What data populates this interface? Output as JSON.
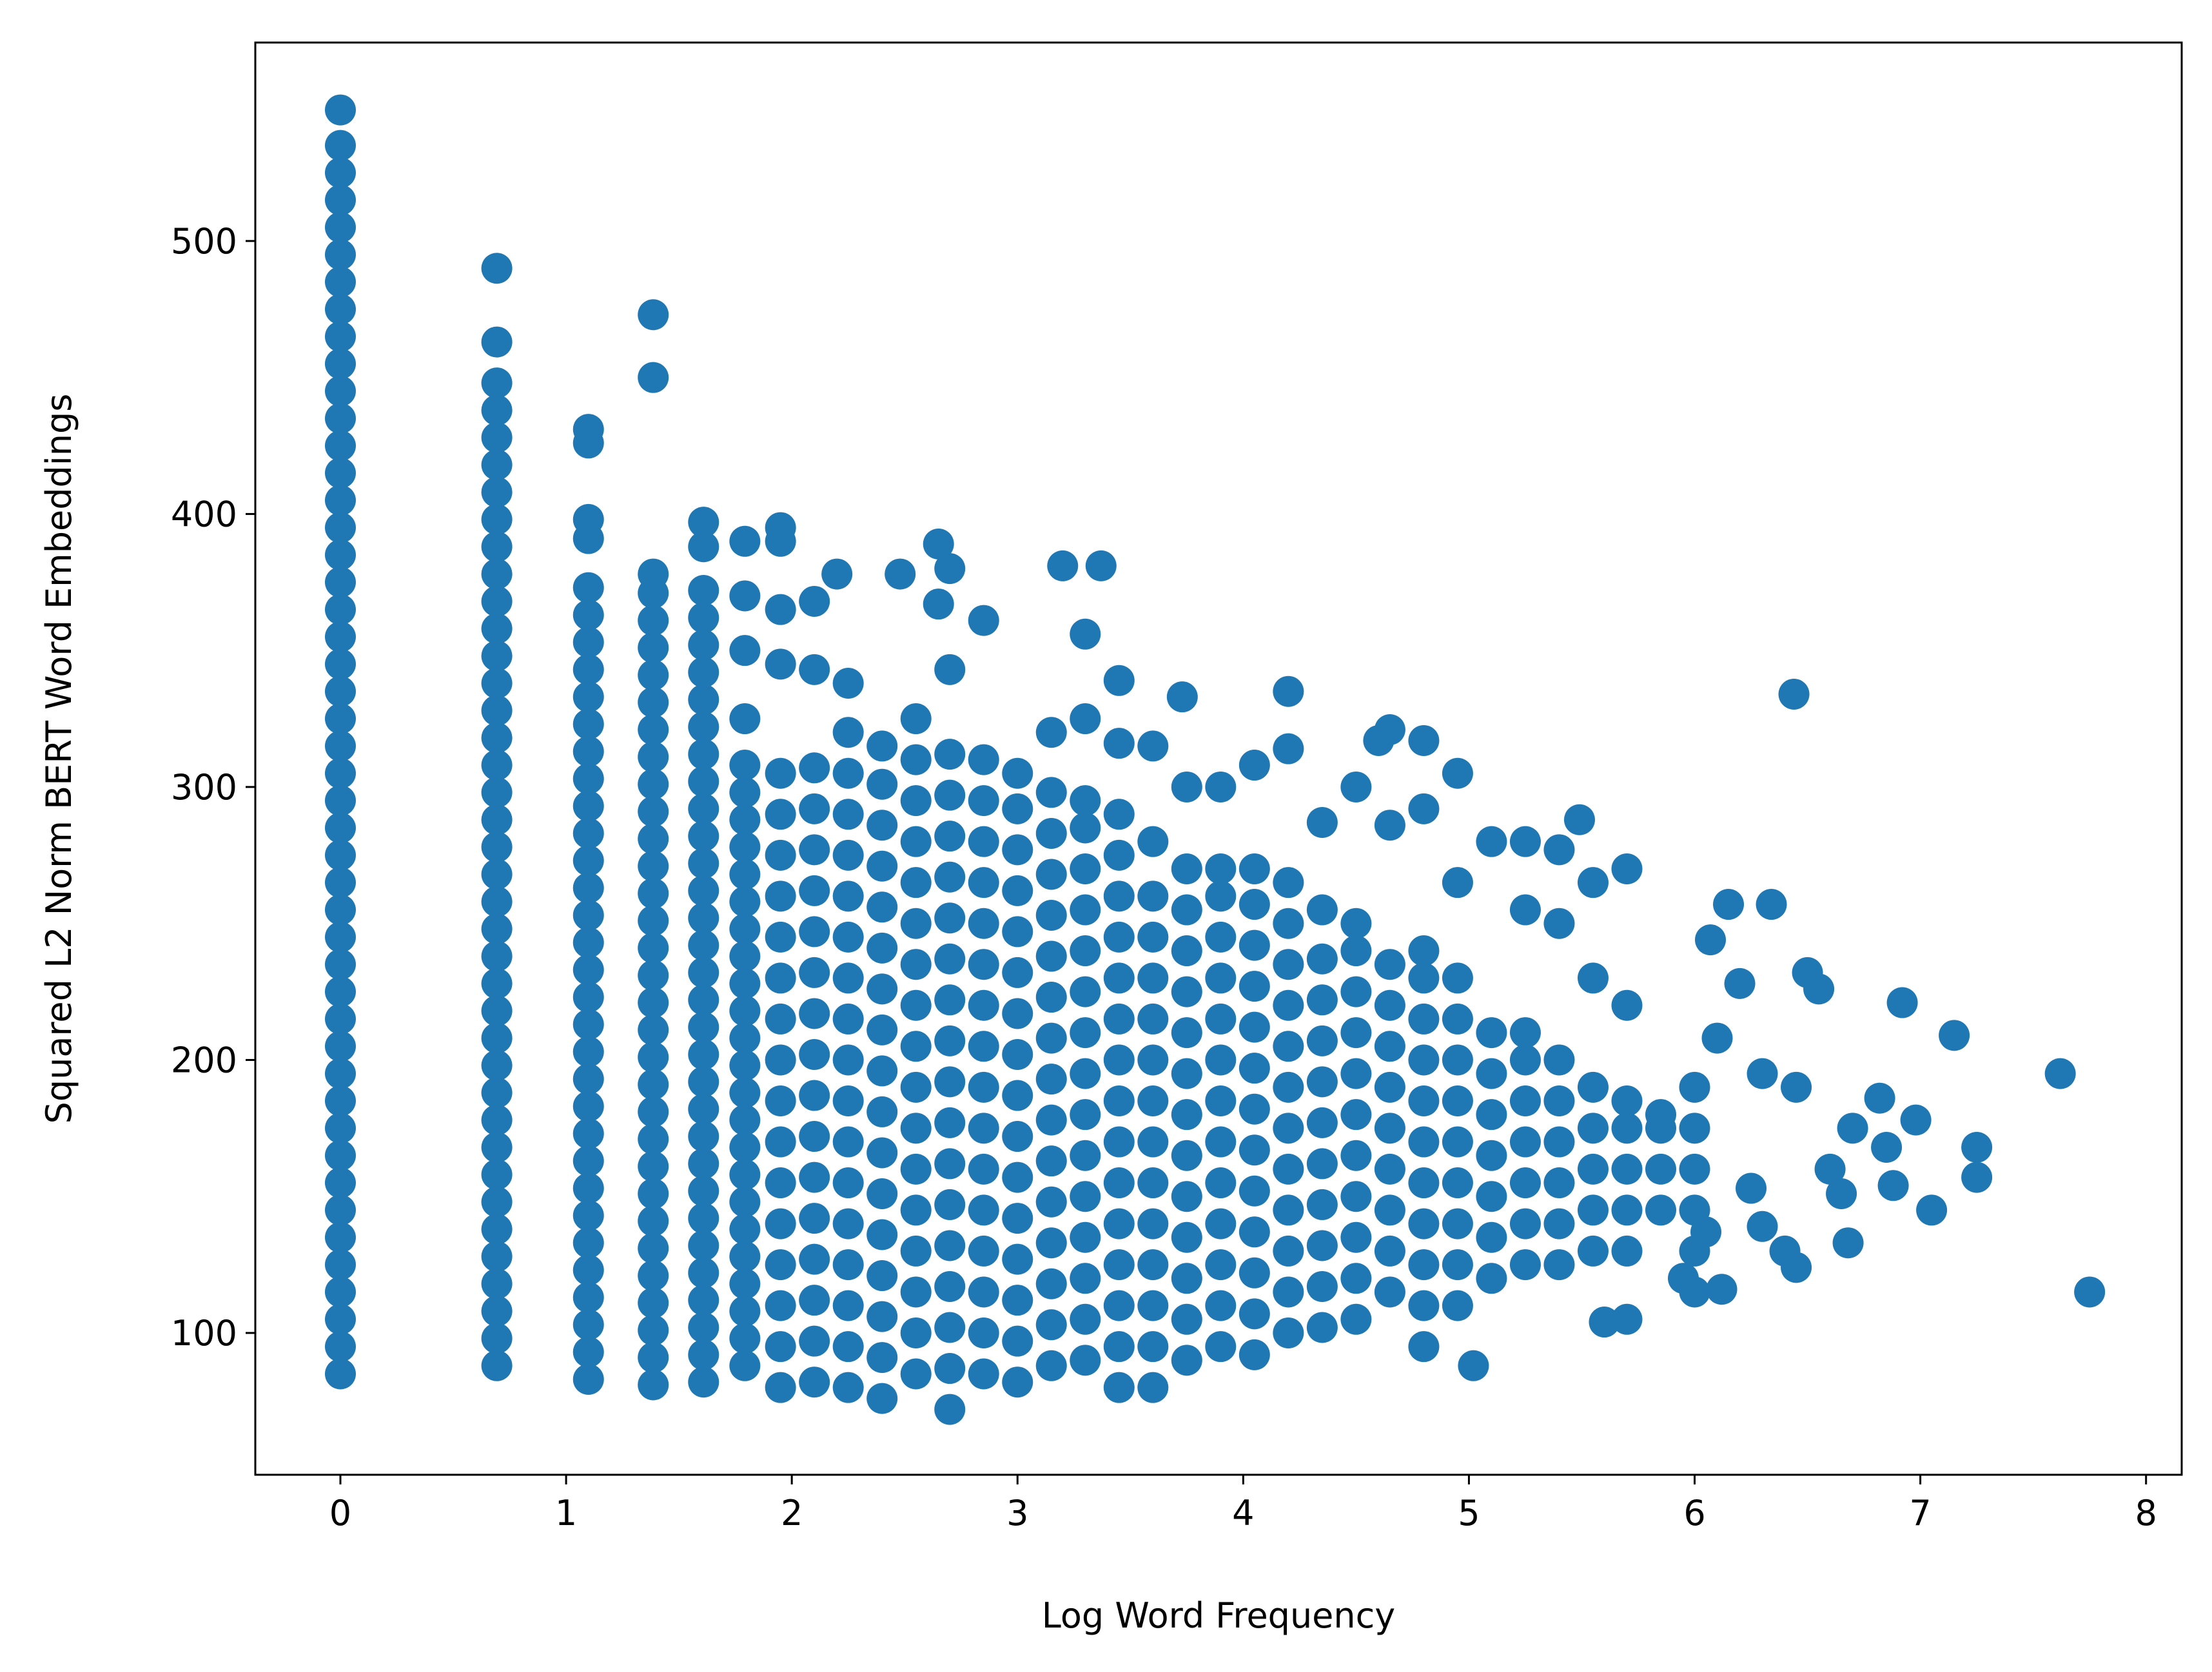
{
  "chart_data": {
    "type": "scatter",
    "xlabel": "Log Word Frequency",
    "ylabel": "Squared L2 Norm BERT Word Embeddings",
    "color": "#1f77b4",
    "xlim": [
      -0.377,
      8.158
    ],
    "ylim": [
      48.05,
      572.7
    ],
    "xticks": [
      0,
      1,
      2,
      3,
      4,
      5,
      6,
      7,
      8
    ],
    "yticks": [
      100,
      200,
      300,
      400,
      500
    ],
    "grid": false,
    "strips": [
      {
        "x": 0,
        "values": [
          85,
          95,
          105,
          115,
          125,
          135,
          145,
          155,
          165,
          175,
          185,
          195,
          205,
          215,
          225,
          235,
          245,
          255,
          265,
          275,
          285,
          295,
          305,
          315,
          325,
          335,
          345,
          355,
          365,
          375,
          385,
          395,
          405,
          415,
          425,
          435,
          445,
          455,
          465,
          475,
          485,
          495,
          505,
          515,
          525,
          535,
          548
        ]
      },
      {
        "x": 0.693,
        "values": [
          88,
          98,
          108,
          118,
          128,
          138,
          148,
          158,
          168,
          178,
          188,
          198,
          208,
          218,
          228,
          238,
          248,
          258,
          268,
          278,
          288,
          298,
          308,
          318,
          328,
          338,
          348,
          358,
          368,
          378,
          388,
          398,
          408,
          418,
          428,
          438,
          448,
          463,
          490
        ]
      },
      {
        "x": 1.099,
        "values": [
          83,
          93,
          103,
          113,
          123,
          133,
          143,
          153,
          163,
          173,
          183,
          193,
          203,
          213,
          223,
          233,
          243,
          253,
          263,
          273,
          283,
          293,
          303,
          313,
          323,
          333,
          343,
          353,
          363,
          373,
          391,
          398,
          426,
          431
        ]
      },
      {
        "x": 1.386,
        "values": [
          81,
          91,
          101,
          111,
          121,
          131,
          141,
          151,
          161,
          171,
          181,
          191,
          201,
          211,
          221,
          231,
          241,
          251,
          261,
          271,
          281,
          291,
          301,
          311,
          321,
          331,
          341,
          351,
          361,
          371,
          378,
          450,
          473
        ]
      },
      {
        "x": 1.609,
        "values": [
          82,
          92,
          102,
          112,
          122,
          132,
          142,
          152,
          162,
          172,
          182,
          192,
          202,
          212,
          222,
          232,
          242,
          252,
          262,
          272,
          282,
          292,
          302,
          312,
          322,
          332,
          342,
          352,
          362,
          372,
          388,
          397
        ]
      },
      {
        "x": 1.792,
        "values": [
          88,
          98,
          108,
          118,
          128,
          138,
          148,
          158,
          168,
          178,
          188,
          198,
          208,
          218,
          228,
          238,
          248,
          258,
          268,
          278,
          288,
          298,
          308,
          325,
          350,
          370,
          390
        ]
      },
      {
        "x": 1.95,
        "values": [
          80,
          95,
          110,
          125,
          140,
          155,
          170,
          185,
          200,
          215,
          230,
          245,
          260,
          275,
          290,
          305,
          345,
          365,
          390,
          395
        ]
      },
      {
        "x": 2.1,
        "values": [
          82,
          97,
          112,
          127,
          142,
          157,
          172,
          187,
          202,
          217,
          232,
          247,
          262,
          277,
          292,
          307,
          343,
          368
        ]
      },
      {
        "x": 2.2,
        "values": [
          378
        ]
      },
      {
        "x": 2.25,
        "values": [
          80,
          95,
          110,
          125,
          140,
          155,
          170,
          185,
          200,
          215,
          230,
          245,
          260,
          275,
          290,
          305,
          320,
          338
        ]
      },
      {
        "x": 2.4,
        "values": [
          76,
          91,
          106,
          121,
          136,
          151,
          166,
          181,
          196,
          211,
          226,
          241,
          256,
          271,
          286,
          301,
          315
        ]
      },
      {
        "x": 2.48,
        "values": [
          378
        ]
      },
      {
        "x": 2.55,
        "values": [
          85,
          100,
          115,
          130,
          145,
          160,
          175,
          190,
          205,
          220,
          235,
          250,
          265,
          280,
          295,
          310,
          325
        ]
      },
      {
        "x": 2.65,
        "values": [
          389,
          367
        ]
      },
      {
        "x": 2.7,
        "values": [
          72,
          87,
          102,
          117,
          132,
          147,
          162,
          177,
          192,
          207,
          222,
          237,
          252,
          267,
          282,
          297,
          312,
          343,
          380
        ]
      },
      {
        "x": 2.85,
        "values": [
          85,
          100,
          115,
          130,
          145,
          160,
          175,
          190,
          205,
          220,
          235,
          250,
          265,
          280,
          295,
          310,
          361
        ]
      },
      {
        "x": 3.0,
        "values": [
          82,
          97,
          112,
          127,
          142,
          157,
          172,
          187,
          202,
          217,
          232,
          247,
          262,
          277,
          292,
          305
        ]
      },
      {
        "x": 3.15,
        "values": [
          88,
          103,
          118,
          133,
          148,
          163,
          178,
          193,
          208,
          223,
          238,
          253,
          268,
          283,
          298,
          320
        ]
      },
      {
        "x": 3.2,
        "values": [
          381
        ]
      },
      {
        "x": 3.3,
        "values": [
          90,
          105,
          120,
          135,
          150,
          165,
          180,
          195,
          210,
          225,
          240,
          255,
          270,
          285,
          295,
          325,
          356
        ]
      },
      {
        "x": 3.37,
        "values": [
          381
        ]
      },
      {
        "x": 3.45,
        "values": [
          80,
          95,
          110,
          125,
          140,
          155,
          170,
          185,
          200,
          215,
          230,
          245,
          260,
          275,
          290,
          316,
          339
        ]
      },
      {
        "x": 3.6,
        "values": [
          80,
          95,
          110,
          125,
          140,
          155,
          170,
          185,
          200,
          215,
          230,
          245,
          260,
          280,
          315
        ]
      },
      {
        "x": 3.73,
        "values": [
          333
        ]
      },
      {
        "x": 3.75,
        "values": [
          90,
          105,
          120,
          135,
          150,
          165,
          180,
          195,
          210,
          225,
          240,
          255,
          270,
          300
        ]
      },
      {
        "x": 3.9,
        "values": [
          95,
          110,
          125,
          140,
          155,
          170,
          185,
          200,
          215,
          230,
          245,
          260,
          270,
          300
        ]
      },
      {
        "x": 4.05,
        "values": [
          92,
          107,
          122,
          137,
          152,
          167,
          182,
          197,
          212,
          227,
          242,
          257,
          270,
          308
        ]
      },
      {
        "x": 4.2,
        "values": [
          100,
          115,
          130,
          145,
          160,
          175,
          190,
          205,
          220,
          235,
          250,
          265,
          314,
          335
        ]
      },
      {
        "x": 4.35,
        "values": [
          102,
          117,
          132,
          147,
          162,
          177,
          192,
          207,
          222,
          237,
          255,
          287
        ]
      },
      {
        "x": 4.5,
        "values": [
          105,
          120,
          135,
          150,
          165,
          180,
          195,
          210,
          225,
          240,
          250,
          300
        ]
      },
      {
        "x": 4.6,
        "values": [
          317
        ]
      },
      {
        "x": 4.65,
        "values": [
          115,
          130,
          145,
          160,
          175,
          190,
          205,
          220,
          235,
          286,
          321
        ]
      },
      {
        "x": 4.8,
        "values": [
          95,
          110,
          125,
          140,
          155,
          170,
          185,
          200,
          215,
          230,
          240,
          292,
          317
        ]
      },
      {
        "x": 4.95,
        "values": [
          110,
          125,
          140,
          155,
          170,
          185,
          200,
          215,
          230,
          265,
          305
        ]
      },
      {
        "x": 5.02,
        "values": [
          88
        ]
      },
      {
        "x": 5.1,
        "values": [
          120,
          135,
          150,
          165,
          180,
          195,
          210,
          280
        ]
      },
      {
        "x": 5.25,
        "values": [
          125,
          140,
          155,
          170,
          185,
          200,
          210,
          255,
          280
        ]
      },
      {
        "x": 5.4,
        "values": [
          125,
          140,
          155,
          170,
          185,
          200,
          250,
          277
        ]
      },
      {
        "x": 5.49,
        "values": [
          288
        ]
      },
      {
        "x": 5.55,
        "values": [
          130,
          145,
          160,
          175,
          190,
          230,
          265
        ]
      },
      {
        "x": 5.6,
        "values": [
          104
        ]
      },
      {
        "x": 5.7,
        "values": [
          105,
          130,
          145,
          160,
          175,
          185,
          220,
          270
        ]
      },
      {
        "x": 5.85,
        "values": [
          145,
          160,
          175,
          180
        ]
      },
      {
        "x": 5.95,
        "values": [
          120
        ]
      },
      {
        "x": 6.0,
        "values": [
          115,
          130,
          145,
          160,
          175,
          190
        ]
      },
      {
        "x": 6.05,
        "values": [
          137
        ]
      },
      {
        "x": 6.07,
        "values": [
          244
        ]
      },
      {
        "x": 6.1,
        "values": [
          208
        ]
      },
      {
        "x": 6.12,
        "values": [
          116
        ]
      },
      {
        "x": 6.15,
        "values": [
          257
        ]
      },
      {
        "x": 6.2,
        "values": [
          228
        ]
      },
      {
        "x": 6.25,
        "values": [
          153
        ]
      },
      {
        "x": 6.3,
        "values": [
          139,
          195
        ]
      },
      {
        "x": 6.34,
        "values": [
          257
        ]
      },
      {
        "x": 6.4,
        "values": [
          130
        ]
      },
      {
        "x": 6.44,
        "values": [
          334
        ]
      },
      {
        "x": 6.45,
        "values": [
          124,
          190
        ]
      },
      {
        "x": 6.5,
        "values": [
          232
        ]
      },
      {
        "x": 6.55,
        "values": [
          226
        ]
      },
      {
        "x": 6.6,
        "values": [
          160
        ]
      },
      {
        "x": 6.65,
        "values": [
          151
        ]
      },
      {
        "x": 6.68,
        "values": [
          133
        ]
      },
      {
        "x": 6.7,
        "values": [
          175
        ]
      },
      {
        "x": 6.82,
        "values": [
          186
        ]
      },
      {
        "x": 6.85,
        "values": [
          168
        ]
      },
      {
        "x": 6.88,
        "values": [
          154
        ]
      },
      {
        "x": 6.92,
        "values": [
          221
        ]
      },
      {
        "x": 6.98,
        "values": [
          178
        ]
      },
      {
        "x": 7.05,
        "values": [
          145
        ]
      },
      {
        "x": 7.15,
        "values": [
          209
        ]
      },
      {
        "x": 7.25,
        "values": [
          168,
          157
        ]
      },
      {
        "x": 7.62,
        "values": [
          195
        ]
      },
      {
        "x": 7.75,
        "values": [
          115
        ]
      }
    ]
  }
}
